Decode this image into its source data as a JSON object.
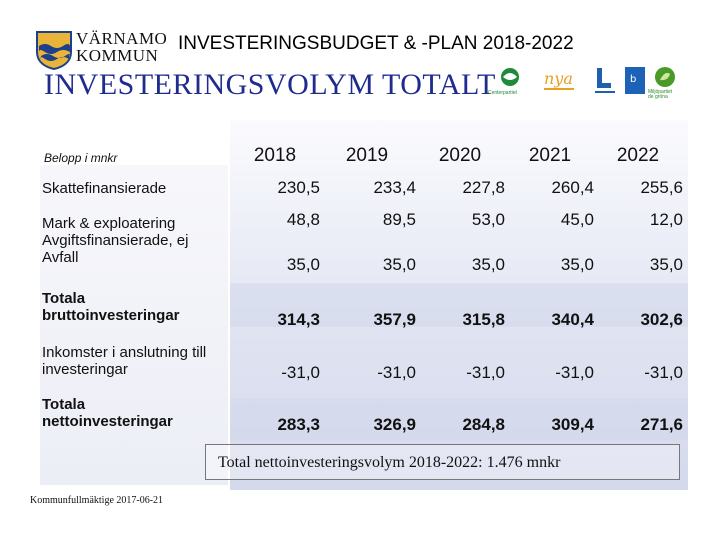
{
  "header": {
    "logo_line1": "VÄRNAMO",
    "logo_line2": "KOMMUN",
    "top_title": "INVESTERINGSBUDGET & -PLAN 2018-2022",
    "main_title": "INVESTERINGSVOLYM TOTALT"
  },
  "partners": {
    "centerpartiet": "Centerpartiet",
    "miljopartiet": "Miljöpartiet de gröna"
  },
  "table": {
    "unit_label": "Belopp i mnkr",
    "years": [
      "2018",
      "2019",
      "2020",
      "2021",
      "2022"
    ],
    "rows": [
      {
        "label": "Skattefinansierade",
        "values": [
          "230,5",
          "233,4",
          "227,8",
          "260,4",
          "255,6"
        ]
      },
      {
        "label": "Mark & exploatering",
        "values": [
          "48,8",
          "89,5",
          "53,0",
          "45,0",
          "12,0"
        ]
      },
      {
        "label": "Avgiftsfinansierade, ej Avfall",
        "values": [
          "35,0",
          "35,0",
          "35,0",
          "35,0",
          "35,0"
        ]
      },
      {
        "label": "Totala bruttoinvesteringar",
        "values": [
          "314,3",
          "357,9",
          "315,8",
          "340,4",
          "302,6"
        ]
      },
      {
        "label": "Inkomster i anslutning till investeringar",
        "values": [
          "-31,0",
          "-31,0",
          "-31,0",
          "-31,0",
          "-31,0"
        ]
      },
      {
        "label": "Totala nettoinvesteringar",
        "values": [
          "283,3",
          "326,9",
          "284,8",
          "309,4",
          "271,6"
        ]
      }
    ]
  },
  "summary": "Total nettoinvesteringsvolym 2018-2022: 1.476 mnkr",
  "footer": "Kommunfullmäktige 2017-06-21"
}
